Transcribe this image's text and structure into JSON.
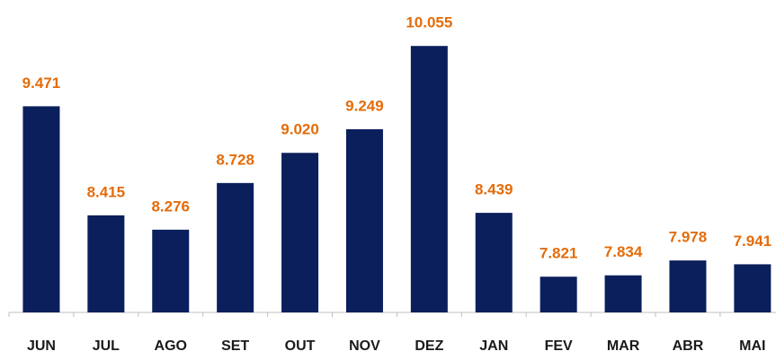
{
  "chart_data": {
    "type": "bar",
    "categories": [
      "JUN",
      "JUL",
      "AGO",
      "SET",
      "OUT",
      "NOV",
      "DEZ",
      "JAN",
      "FEV",
      "MAR",
      "ABR",
      "MAI"
    ],
    "values": [
      9471,
      8415,
      8276,
      8728,
      9020,
      9249,
      10055,
      8439,
      7821,
      7834,
      7978,
      7941
    ],
    "value_labels": [
      "9.471",
      "8.415",
      "8.276",
      "8.728",
      "9.020",
      "9.249",
      "10.055",
      "8.439",
      "7.821",
      "7.834",
      "7.978",
      "7.941"
    ],
    "color": "#0b1f5c",
    "label_color": "#e36c0a",
    "ylim": [
      7475,
      10500
    ],
    "grid": false
  }
}
